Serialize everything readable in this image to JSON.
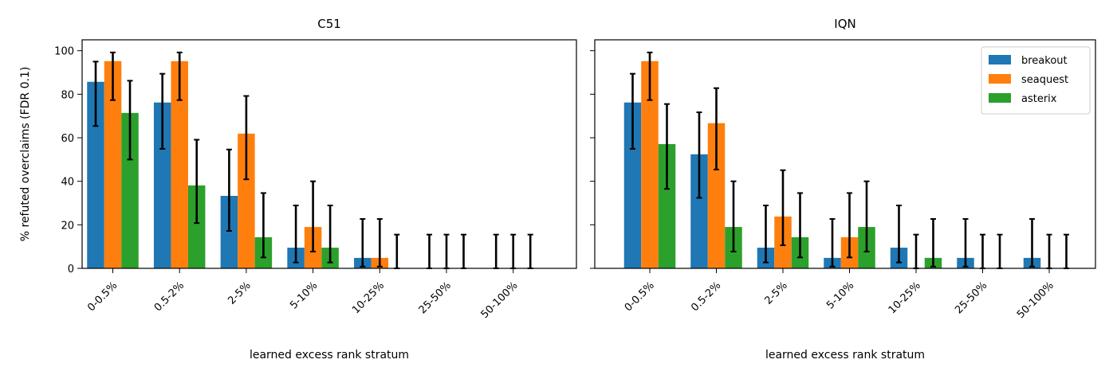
{
  "chart_data": [
    {
      "type": "bar",
      "title": "C51",
      "xlabel": "learned excess rank stratum",
      "ylabel": "% refuted overclaims (FDR 0.1)",
      "ylim": [
        0,
        105
      ],
      "yticks": [
        0,
        20,
        40,
        60,
        80,
        100
      ],
      "categories": [
        "0-0.5%",
        "0.5-2%",
        "2-5%",
        "5-10%",
        "10-25%",
        "25-50%",
        "50-100%"
      ],
      "series": [
        {
          "name": "breakout",
          "color": "#1f77b4",
          "values": [
            85.7,
            76.2,
            33.3,
            9.5,
            4.8,
            0,
            0
          ],
          "err_low": [
            65.4,
            54.9,
            17.2,
            2.7,
            0.8,
            0,
            0
          ],
          "err_high": [
            95.0,
            89.4,
            54.6,
            28.9,
            22.7,
            15.5,
            15.5
          ]
        },
        {
          "name": "seaquest",
          "color": "#ff7f0e",
          "values": [
            95.2,
            95.2,
            61.9,
            19.0,
            4.8,
            0,
            0
          ],
          "err_low": [
            77.3,
            77.3,
            40.9,
            7.7,
            0.8,
            0,
            0
          ],
          "err_high": [
            99.2,
            99.2,
            79.2,
            40.0,
            22.7,
            15.5,
            15.5
          ]
        },
        {
          "name": "asterix",
          "color": "#2ca02c",
          "values": [
            71.4,
            38.1,
            14.3,
            9.5,
            0,
            0,
            0
          ],
          "err_low": [
            50.0,
            20.8,
            5.0,
            2.7,
            0,
            0,
            0
          ],
          "err_high": [
            86.2,
            59.1,
            34.6,
            28.9,
            15.5,
            15.5,
            15.5
          ]
        }
      ]
    },
    {
      "type": "bar",
      "title": "IQN",
      "xlabel": "learned excess rank stratum",
      "ylabel": "",
      "ylim": [
        0,
        105
      ],
      "yticks": [
        0,
        20,
        40,
        60,
        80,
        100
      ],
      "legend": "top-right",
      "categories": [
        "0-0.5%",
        "0.5-2%",
        "2-5%",
        "5-10%",
        "10-25%",
        "25-50%",
        "50-100%"
      ],
      "series": [
        {
          "name": "breakout",
          "color": "#1f77b4",
          "values": [
            76.2,
            52.4,
            9.5,
            4.8,
            9.5,
            4.8,
            4.8
          ],
          "err_low": [
            54.9,
            32.4,
            2.7,
            0.8,
            2.7,
            0.8,
            0.8
          ],
          "err_high": [
            89.4,
            71.7,
            28.9,
            22.7,
            28.9,
            22.7,
            22.7
          ]
        },
        {
          "name": "seaquest",
          "color": "#ff7f0e",
          "values": [
            95.2,
            66.7,
            23.8,
            14.3,
            0,
            0,
            0
          ],
          "err_low": [
            77.3,
            45.4,
            10.6,
            5.0,
            0,
            0,
            0
          ],
          "err_high": [
            99.2,
            82.8,
            45.1,
            34.6,
            15.5,
            15.5,
            15.5
          ]
        },
        {
          "name": "asterix",
          "color": "#2ca02c",
          "values": [
            57.1,
            19.0,
            14.3,
            19.0,
            4.8,
            0,
            0
          ],
          "err_low": [
            36.5,
            7.7,
            5.0,
            7.7,
            0.8,
            0,
            0
          ],
          "err_high": [
            75.5,
            40.0,
            34.6,
            40.0,
            22.7,
            15.5,
            15.5
          ]
        }
      ]
    }
  ]
}
